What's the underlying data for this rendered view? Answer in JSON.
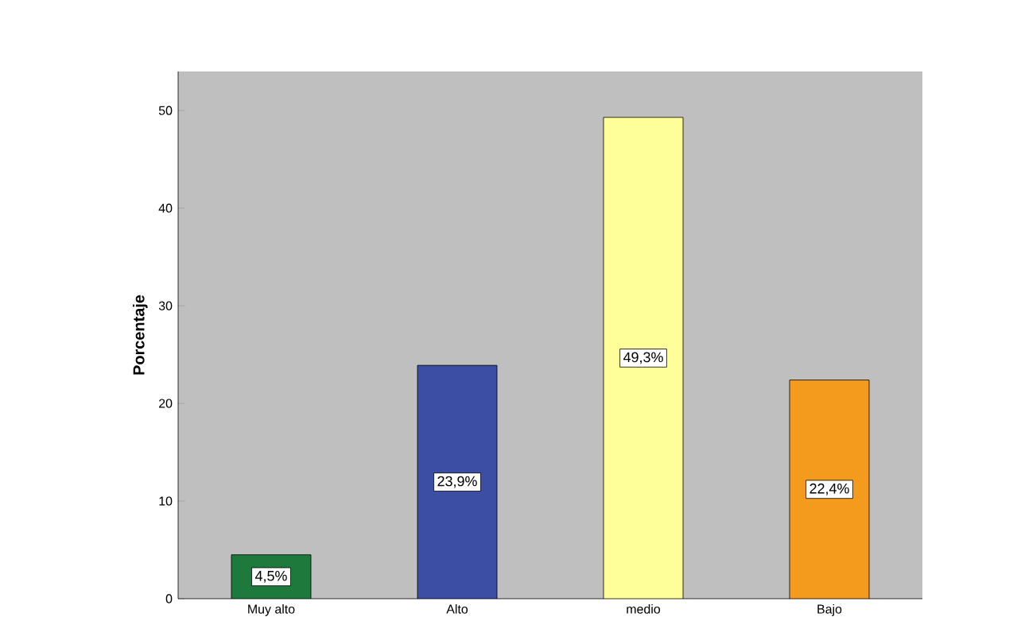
{
  "chart_data": {
    "type": "bar",
    "ylabel": "Porcentaje",
    "categories": [
      "Muy alto",
      "Alto",
      "medio",
      "Bajo"
    ],
    "values": [
      4.5,
      23.9,
      49.3,
      22.4
    ],
    "colors": [
      "#1e7a3c",
      "#3b4ea3",
      "#ffff99",
      "#f49b1e"
    ],
    "value_labels": [
      "4,5%",
      "23,9%",
      "49,3%",
      "22,4%"
    ],
    "ylim": [
      0,
      54
    ],
    "yticks": [
      0,
      10,
      20,
      30,
      40,
      50
    ],
    "grid": false
  }
}
